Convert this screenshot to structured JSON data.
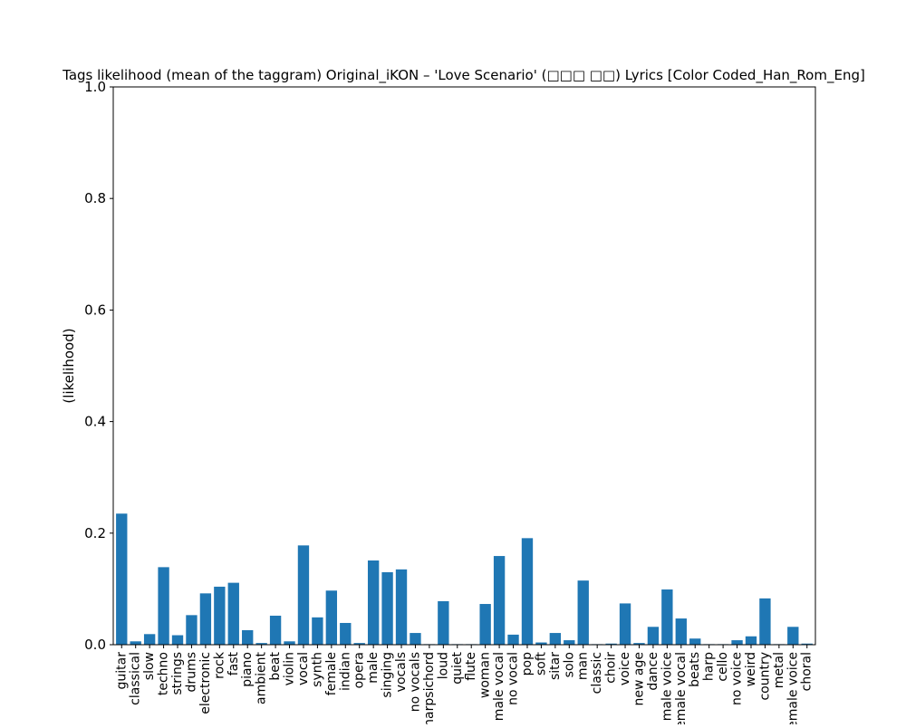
{
  "chart_data": {
    "type": "bar",
    "title": "Tags likelihood (mean of the taggram) Original_iKON – 'Love Scenario' (□□□ □□) Lyrics [Color Coded_Han_Rom_Eng]",
    "xlabel": "",
    "ylabel": "(likelihood)",
    "ylim": [
      0,
      1.0
    ],
    "yticks": [
      "0.0",
      "0.2",
      "0.4",
      "0.6",
      "0.8",
      "1.0"
    ],
    "grid": false,
    "categories": [
      "guitar",
      "classical",
      "slow",
      "techno",
      "strings",
      "drums",
      "electronic",
      "rock",
      "fast",
      "piano",
      "ambient",
      "beat",
      "violin",
      "vocal",
      "synth",
      "female",
      "indian",
      "opera",
      "male",
      "singing",
      "vocals",
      "no vocals",
      "harpsichord",
      "loud",
      "quiet",
      "flute",
      "woman",
      "male vocal",
      "no vocal",
      "pop",
      "soft",
      "sitar",
      "solo",
      "man",
      "classic",
      "choir",
      "voice",
      "new age",
      "dance",
      "male voice",
      "female vocal",
      "beats",
      "harp",
      "cello",
      "no voice",
      "weird",
      "country",
      "metal",
      "female voice",
      "choral"
    ],
    "values": [
      0.235,
      0.006,
      0.019,
      0.139,
      0.017,
      0.053,
      0.092,
      0.104,
      0.111,
      0.026,
      0.003,
      0.052,
      0.006,
      0.178,
      0.049,
      0.097,
      0.039,
      0.003,
      0.151,
      0.13,
      0.135,
      0.021,
      0.001,
      0.078,
      0.001,
      0.001,
      0.073,
      0.159,
      0.018,
      0.191,
      0.004,
      0.021,
      0.008,
      0.115,
      0.001,
      0.002,
      0.074,
      0.003,
      0.032,
      0.099,
      0.047,
      0.011,
      0.001,
      0.001,
      0.008,
      0.015,
      0.083,
      0.001,
      0.032,
      0.002
    ],
    "color": "#1f77b4"
  }
}
